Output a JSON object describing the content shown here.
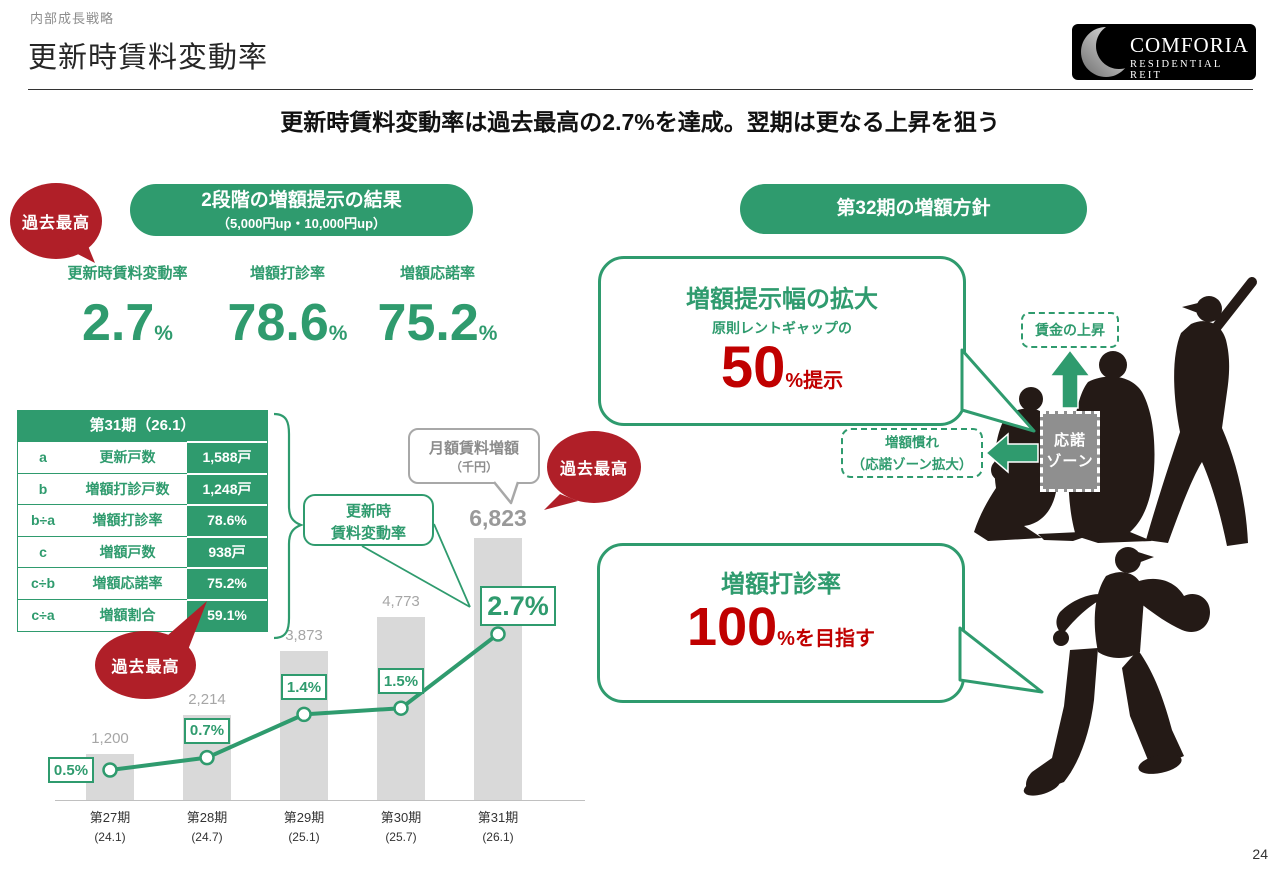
{
  "page": {
    "number": "24"
  },
  "header": {
    "category": "内部成長戦略",
    "title": "更新時賃料変動率",
    "logo": {
      "line1": "COMFORIA",
      "line2": "RESIDENTIAL REIT"
    }
  },
  "headline": "更新時賃料変動率は過去最高の2.7%を達成。翌期は更なる上昇を狙う",
  "left": {
    "record_badge_top": "過去最高",
    "record_badge_table": "過去最高",
    "record_badge_chart": "過去最高",
    "pill_title": "2段階の増額提示の結果",
    "pill_sub": "（5,000円up・10,000円up）",
    "metrics": [
      {
        "label": "更新時賃料変動率",
        "value": "2.7",
        "unit": "%"
      },
      {
        "label": "増額打診率",
        "value": "78.6",
        "unit": "%"
      },
      {
        "label": "増額応諾率",
        "value": "75.2",
        "unit": "%"
      }
    ],
    "table": {
      "header": "第31期（26.1）",
      "rows": [
        {
          "key": "a",
          "label": "更新戸数",
          "value": "1,588戸"
        },
        {
          "key": "b",
          "label": "増額打診戸数",
          "value": "1,248戸"
        },
        {
          "key": "b÷a",
          "label": "増額打診率",
          "value": "78.6%"
        },
        {
          "key": "c",
          "label": "増額戸数",
          "value": "938戸"
        },
        {
          "key": "c÷b",
          "label": "増額応諾率",
          "value": "75.2%"
        },
        {
          "key": "c÷a",
          "label": "増額割合",
          "value": "59.1%"
        }
      ]
    }
  },
  "chart_data": {
    "type": "bar",
    "categories": [
      "第27期",
      "第28期",
      "第29期",
      "第30期",
      "第31期"
    ],
    "category_subs": [
      "(24.1)",
      "(24.7)",
      "(25.1)",
      "(25.7)",
      "(26.1)"
    ],
    "series": [
      {
        "name": "月額賃料増額（千円）",
        "type": "bar",
        "values": [
          1200,
          2214,
          3873,
          4773,
          6823
        ],
        "labels": [
          "1,200",
          "2,214",
          "3,873",
          "4,773",
          "6,823"
        ]
      },
      {
        "name": "更新時賃料変動率",
        "type": "line",
        "values": [
          0.5,
          0.7,
          1.4,
          1.5,
          2.7
        ],
        "labels": [
          "0.5%",
          "0.7%",
          "1.4%",
          "1.5%",
          "2.7%"
        ]
      }
    ],
    "bar_bubble": {
      "line1": "月額賃料増額",
      "line2": "（千円）"
    },
    "line_bubble": {
      "line1": "更新時",
      "line2": "賃料変動率"
    },
    "ylim": [
      0,
      7000
    ],
    "grid": false,
    "bar_color": "#d9d9d9",
    "line_color": "#2f9b6e"
  },
  "right": {
    "pill_title": "第32期の増額方針",
    "bubble1": {
      "title": "増額提示幅の拡大",
      "sub": "原則レントギャップの",
      "big": "50",
      "suffix": "%提示"
    },
    "bubble2": {
      "title": "増額打診率",
      "big": "100",
      "suffix": "%を目指す"
    },
    "tag_wage": "賃金の上昇",
    "tag_accustom_line1": "増額慣れ",
    "tag_accustom_line2": "（応諾ゾーン拡大）",
    "zone_line1": "応諾",
    "zone_line2": "ゾーン"
  },
  "colors": {
    "green": "#2f9b6e",
    "red_bubble": "#b01f28",
    "red_text": "#c00000",
    "bar_gray": "#d9d9d9"
  }
}
